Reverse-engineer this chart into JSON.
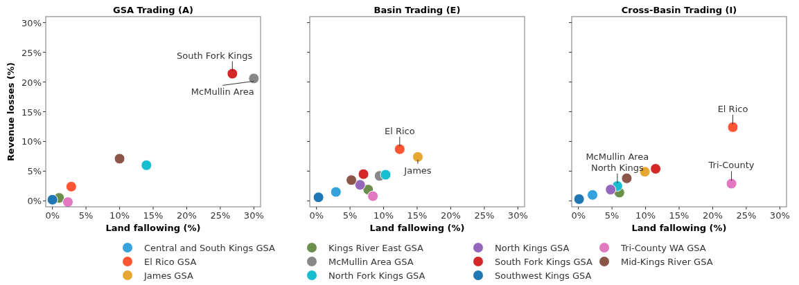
{
  "chart_data": [
    {
      "type": "scatter",
      "title": "GSA Trading (A)",
      "xlabel": "Land fallowing (%)",
      "ylabel": "Revenue losses (%)",
      "xlim": [
        -1,
        31
      ],
      "ylim": [
        -1,
        31
      ],
      "xticks": [
        {
          "value": 0,
          "label": "0%"
        },
        {
          "value": 5,
          "label": "5%"
        },
        {
          "value": 10,
          "label": "10%"
        },
        {
          "value": 15,
          "label": "15%"
        },
        {
          "value": 20,
          "label": "20%"
        },
        {
          "value": 25,
          "label": "25%"
        },
        {
          "value": 30,
          "label": "30%"
        }
      ],
      "yticks": [
        {
          "value": 0,
          "label": "0%"
        },
        {
          "value": 5,
          "label": "5%"
        },
        {
          "value": 10,
          "label": "10%"
        },
        {
          "value": 15,
          "label": "15%"
        },
        {
          "value": 20,
          "label": "20%"
        },
        {
          "value": 25,
          "label": "25%"
        },
        {
          "value": 30,
          "label": "30%"
        }
      ],
      "marker": "circle",
      "legend": "bottom",
      "series": [
        {
          "name": "Central and South Kings GSA",
          "color": "#33a2dd",
          "x": [
            null
          ],
          "values": [
            null
          ]
        },
        {
          "name": "El Rico GSA",
          "color": "#ff5533",
          "x": [
            2.8
          ],
          "values": [
            2.4
          ]
        },
        {
          "name": "James GSA",
          "color": "#e6a833",
          "x": [
            null
          ],
          "values": [
            null
          ]
        },
        {
          "name": "Kings River East GSA",
          "color": "#6a8f4a",
          "x": [
            1.0
          ],
          "values": [
            0.5
          ]
        },
        {
          "name": "McMullin Area GSA",
          "color": "#888888",
          "x": [
            30.0
          ],
          "values": [
            20.6
          ]
        },
        {
          "name": "North Fork Kings GSA",
          "color": "#17becf",
          "x": [
            14.0
          ],
          "values": [
            6.0
          ]
        },
        {
          "name": "North Kings GSA",
          "color": "#9467bd",
          "x": [
            null
          ],
          "values": [
            null
          ]
        },
        {
          "name": "South Fork Kings GSA",
          "color": "#d62728",
          "x": [
            26.8
          ],
          "values": [
            21.4
          ]
        },
        {
          "name": "Southwest Kings GSA",
          "color": "#1f77b4",
          "x": [
            0.0
          ],
          "values": [
            0.2
          ]
        },
        {
          "name": "Tri-County WA GSA",
          "color": "#e377c2",
          "x": [
            2.3
          ],
          "values": [
            -0.2
          ]
        },
        {
          "name": "Mid-Kings River GSA",
          "color": "#8c564b",
          "x": [
            10.0
          ],
          "values": [
            7.1
          ]
        }
      ],
      "annotations": [
        {
          "text": "South Fork Kings",
          "x": 26.8,
          "y": 21.4
        },
        {
          "text": "McMullin Area",
          "x": 30.0,
          "y": 20.6
        }
      ]
    },
    {
      "type": "scatter",
      "title": "Basin Trading (E)",
      "xlabel": "Land fallowing (%)",
      "xlim": [
        -1,
        31
      ],
      "ylim": [
        -1,
        31
      ],
      "tick_labels": "x",
      "xticks": [
        {
          "value": 0,
          "label": "0%"
        },
        {
          "value": 5,
          "label": "5%"
        },
        {
          "value": 10,
          "label": "10%"
        },
        {
          "value": 15,
          "label": "15%"
        },
        {
          "value": 20,
          "label": "20%"
        },
        {
          "value": 25,
          "label": "25%"
        },
        {
          "value": 30,
          "label": "30%"
        }
      ],
      "yticks": [
        {
          "value": 0,
          "label": null
        },
        {
          "value": 5,
          "label": null
        },
        {
          "value": 10,
          "label": null
        },
        {
          "value": 15,
          "label": null
        },
        {
          "value": 20,
          "label": null
        },
        {
          "value": 25,
          "label": null
        },
        {
          "value": 30,
          "label": null
        }
      ],
      "marker": "circle",
      "series": [
        {
          "color": "#33a2dd",
          "x": [
            2.9
          ],
          "values": [
            1.5
          ]
        },
        {
          "color": "#ff5533",
          "x": [
            12.4
          ],
          "values": [
            8.7
          ]
        },
        {
          "color": "#e6a833",
          "x": [
            15.1
          ],
          "values": [
            7.4
          ]
        },
        {
          "color": "#6a8f4a",
          "x": [
            7.7
          ],
          "values": [
            1.9
          ]
        },
        {
          "color": "#888888",
          "x": [
            9.4
          ],
          "values": [
            4.2
          ]
        },
        {
          "color": "#17becf",
          "x": [
            10.3
          ],
          "values": [
            4.4
          ]
        },
        {
          "color": "#9467bd",
          "x": [
            6.5
          ],
          "values": [
            2.7
          ]
        },
        {
          "color": "#d62728",
          "x": [
            7.0
          ],
          "values": [
            4.5
          ]
        },
        {
          "color": "#1f77b4",
          "x": [
            0.3
          ],
          "values": [
            0.6
          ]
        },
        {
          "color": "#e377c2",
          "x": [
            8.4
          ],
          "values": [
            0.8
          ]
        },
        {
          "color": "#8c564b",
          "x": [
            5.2
          ],
          "values": [
            3.5
          ]
        }
      ],
      "annotations": [
        {
          "text": "El Rico",
          "x": 12.4,
          "y": 8.7
        },
        {
          "text": "James",
          "x": 15.1,
          "y": 7.4
        }
      ]
    },
    {
      "type": "scatter",
      "title": "Cross-Basin Trading (I)",
      "xlabel": "Land fallowing (%)",
      "xlim": [
        -1,
        31
      ],
      "ylim": [
        -1,
        31
      ],
      "tick_labels": "x",
      "xticks": [
        {
          "value": 0,
          "label": "0%"
        },
        {
          "value": 5,
          "label": "5%"
        },
        {
          "value": 10,
          "label": "10%"
        },
        {
          "value": 15,
          "label": "15%"
        },
        {
          "value": 20,
          "label": "20%"
        },
        {
          "value": 25,
          "label": "25%"
        },
        {
          "value": 30,
          "label": "30%"
        }
      ],
      "yticks": [
        {
          "value": 0,
          "label": null
        },
        {
          "value": 5,
          "label": null
        },
        {
          "value": 10,
          "label": null
        },
        {
          "value": 15,
          "label": null
        },
        {
          "value": 20,
          "label": null
        },
        {
          "value": 25,
          "label": null
        },
        {
          "value": 30,
          "label": null
        }
      ],
      "marker": "circle",
      "series": [
        {
          "color": "#33a2dd",
          "x": [
            2.1
          ],
          "values": [
            1.0
          ]
        },
        {
          "color": "#ff5533",
          "x": [
            23.0
          ],
          "values": [
            12.4
          ]
        },
        {
          "color": "#e6a833",
          "x": [
            9.9
          ],
          "values": [
            4.9
          ]
        },
        {
          "color": "#6a8f4a",
          "x": [
            6.1
          ],
          "values": [
            1.4
          ]
        },
        {
          "color": "#888888",
          "x": [
            null
          ],
          "values": [
            null
          ]
        },
        {
          "color": "#17becf",
          "x": [
            5.8
          ],
          "values": [
            2.5
          ]
        },
        {
          "color": "#9467bd",
          "x": [
            4.8
          ],
          "values": [
            1.9
          ]
        },
        {
          "color": "#d62728",
          "x": [
            11.5
          ],
          "values": [
            5.4
          ]
        },
        {
          "color": "#1f77b4",
          "x": [
            0.1
          ],
          "values": [
            0.3
          ]
        },
        {
          "color": "#e377c2",
          "x": [
            22.8
          ],
          "values": [
            2.9
          ]
        },
        {
          "color": "#8c564b",
          "x": [
            7.2
          ],
          "values": [
            3.8
          ]
        }
      ],
      "annotations": [
        {
          "text": "El Rico",
          "x": 23.0,
          "y": 12.4
        },
        {
          "text": "McMullin Area\nNorth Kings",
          "x": 5.8,
          "y": 2.5
        },
        {
          "text": "Tri-County",
          "x": 22.8,
          "y": 2.9
        }
      ]
    }
  ]
}
